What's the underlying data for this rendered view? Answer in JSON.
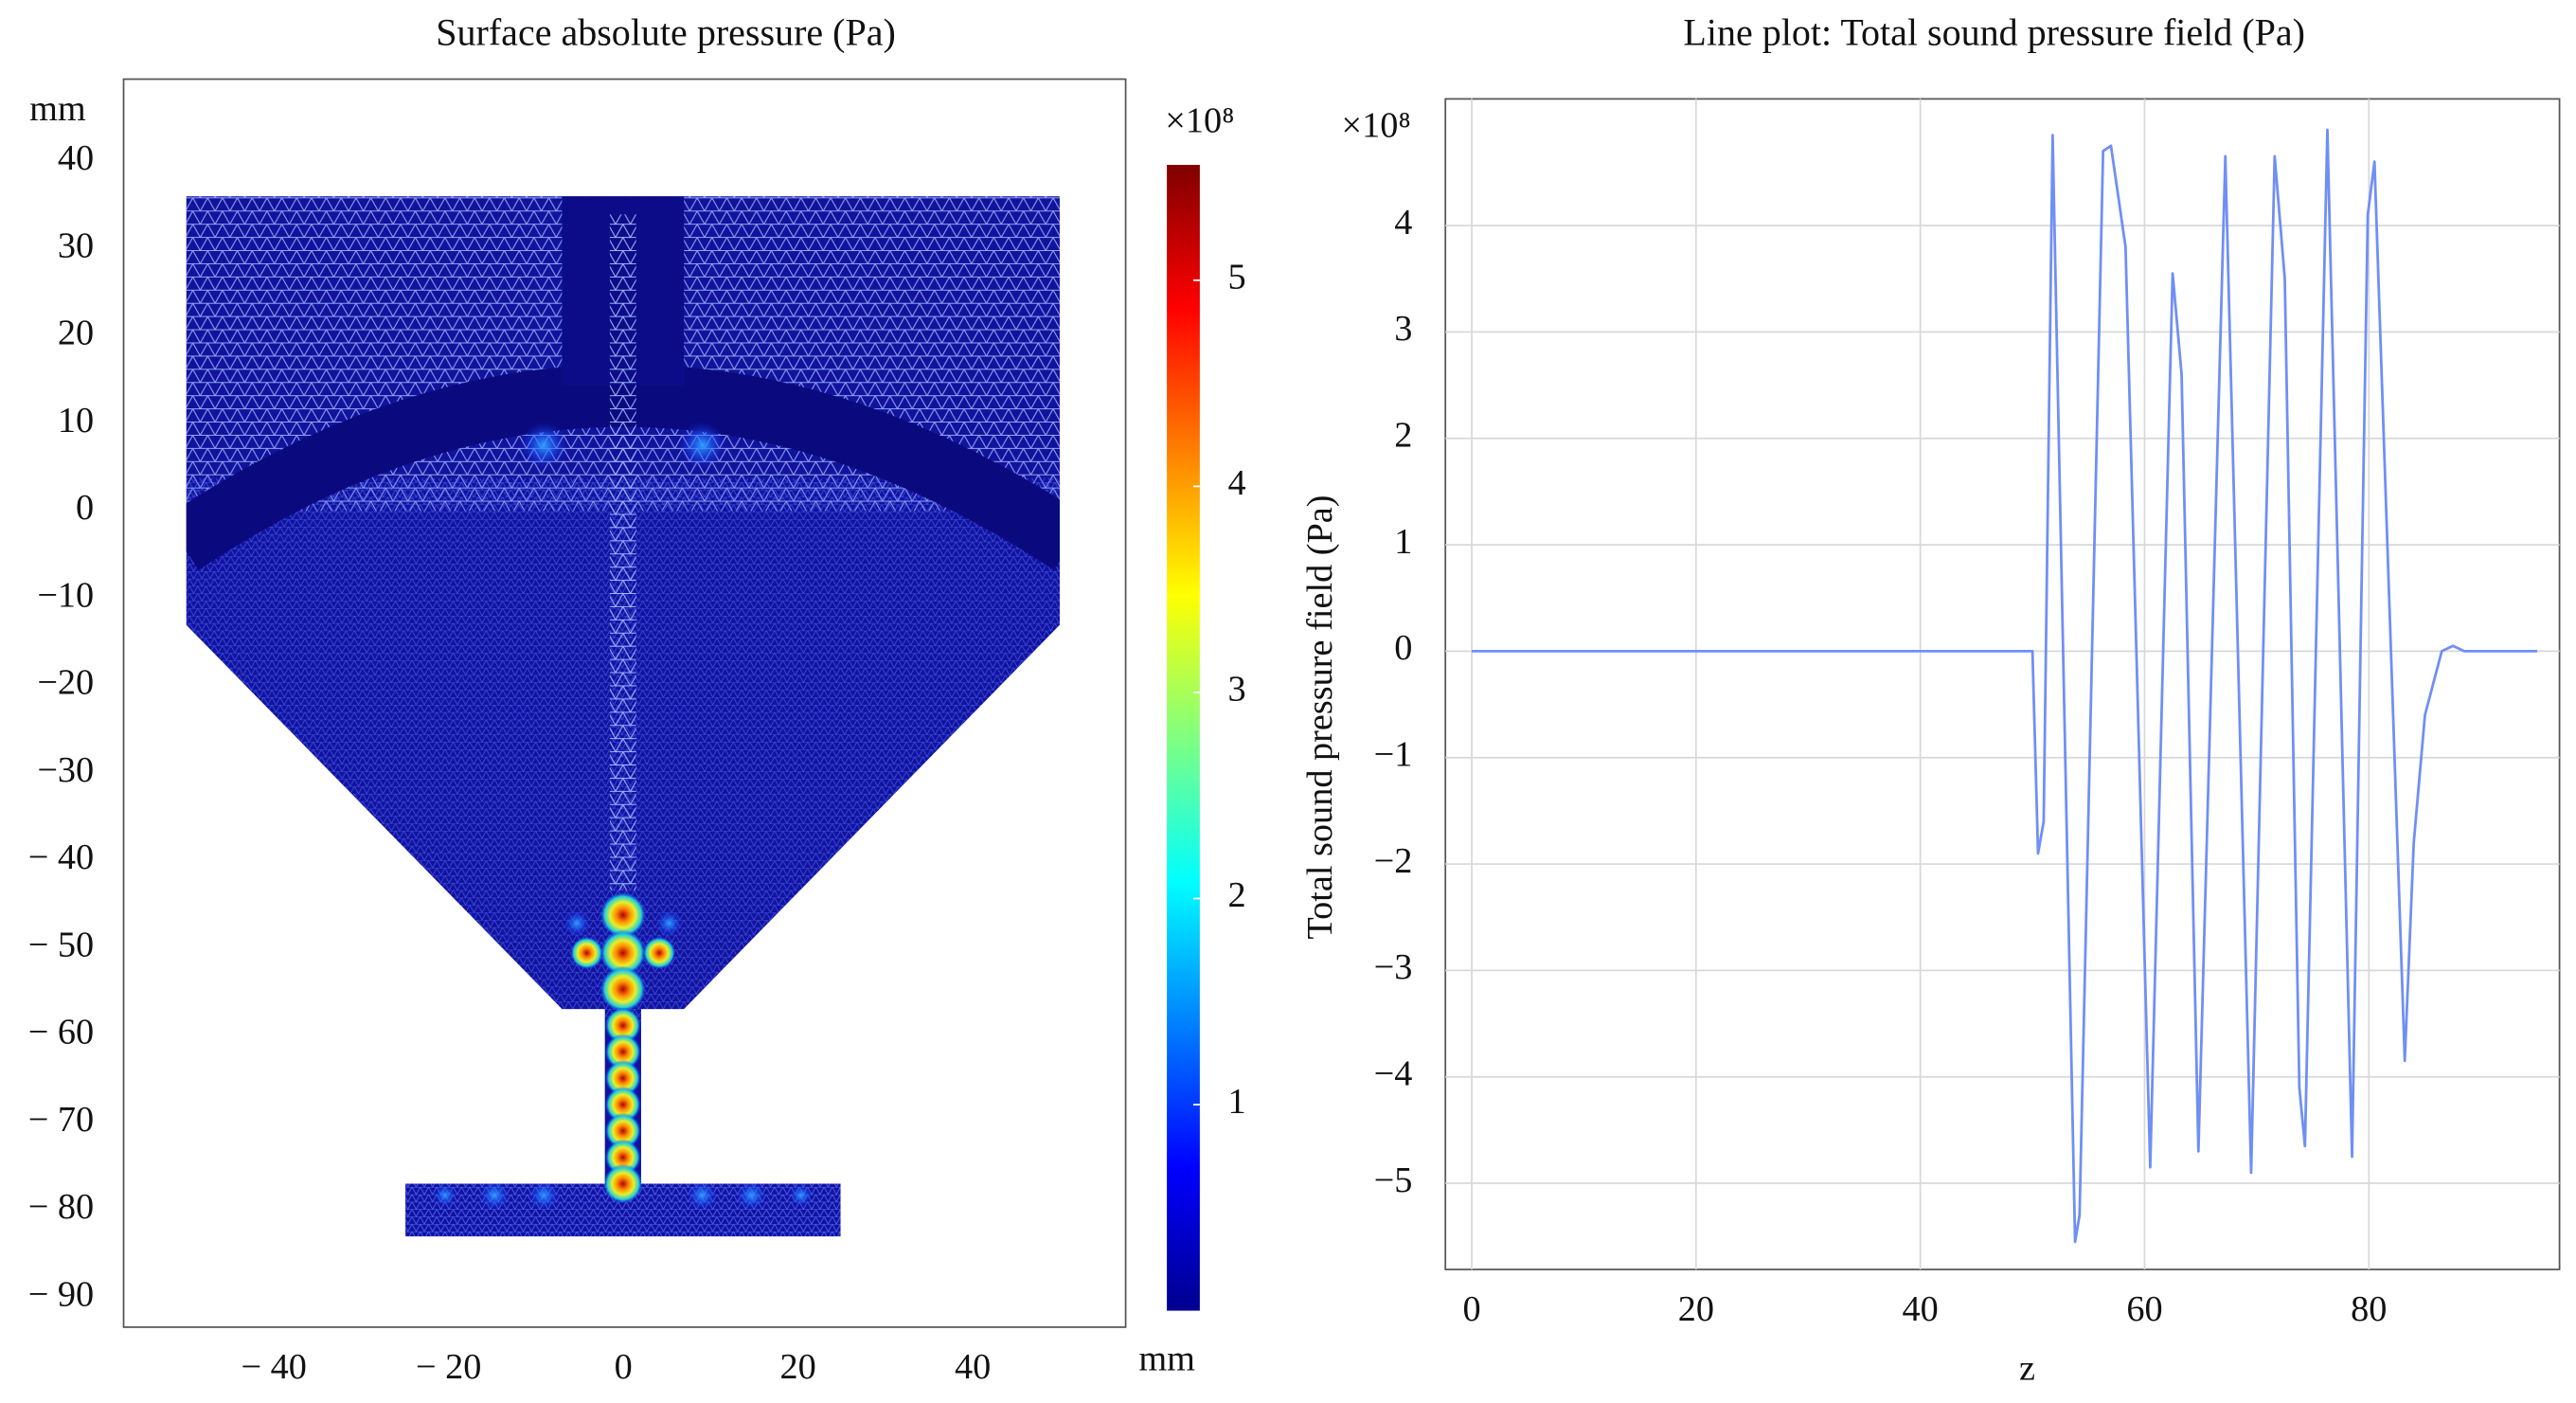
{
  "chart_data": [
    {
      "type": "surface",
      "title": "Surface absolute pressure (Pa)",
      "x_unit": "mm",
      "y_unit": "mm",
      "xlim": [
        -57.2,
        57.5
      ],
      "ylim": [
        -93.4,
        49.4
      ],
      "xticks": [
        {
          "value": -40,
          "label": "− 40"
        },
        {
          "value": -20,
          "label": "− 20"
        },
        0,
        20,
        40
      ],
      "yticks": [
        40,
        30,
        20,
        10,
        0,
        {
          "value": -10,
          "label": "−10"
        },
        {
          "value": -20,
          "label": "−20"
        },
        {
          "value": -30,
          "label": "−30"
        },
        {
          "value": -40,
          "label": "− 40"
        },
        {
          "value": -50,
          "label": "− 50"
        },
        {
          "value": -60,
          "label": "− 60"
        },
        {
          "value": -70,
          "label": "− 70"
        },
        {
          "value": -80,
          "label": "− 80"
        },
        {
          "value": -90,
          "label": "− 90"
        }
      ],
      "grid": false,
      "colorbar": {
        "label": "×10⁸",
        "lim": [
          0,
          5.56
        ],
        "ticks": [
          1,
          2,
          3,
          4,
          5
        ],
        "colormap": "jet"
      }
    },
    {
      "type": "line",
      "title": "Line plot: Total sound pressure field (Pa)",
      "xlabel": "z",
      "ylabel": "Total sound pressure field (Pa)",
      "y_exponent": "×10⁸",
      "x": [
        0,
        10,
        20,
        30,
        40,
        50,
        50.5,
        51,
        51.8,
        53.8,
        54.2,
        56.3,
        57,
        58.3,
        60.5,
        62.5,
        63.3,
        64.8,
        67.2,
        69.5,
        71.6,
        72.5,
        73.8,
        74.3,
        76.3,
        78.5,
        79.9,
        80.5,
        83.2,
        84,
        85,
        86.5,
        87.5,
        88.5,
        95
      ],
      "series": [
        {
          "color": "#6f8ff5",
          "values": [
            0,
            0,
            0,
            0,
            0,
            0,
            -1.9,
            -1.6,
            4.85,
            -5.55,
            -5.3,
            4.7,
            4.75,
            3.8,
            -4.85,
            3.55,
            2.6,
            -4.7,
            4.65,
            -4.9,
            4.65,
            3.5,
            -4.1,
            -4.65,
            4.9,
            -4.75,
            4.1,
            4.6,
            -3.85,
            -1.8,
            -0.6,
            0,
            0.05,
            0,
            0
          ]
        }
      ],
      "xlim": [
        -2.35,
        97
      ],
      "ylim": [
        -5.81,
        5.19
      ],
      "xticks": [
        0,
        20,
        40,
        60,
        80
      ],
      "yticks": [
        4,
        3,
        2,
        1,
        0,
        {
          "value": -1,
          "label": "−1"
        },
        {
          "value": -2,
          "label": "−2"
        },
        {
          "value": -3,
          "label": "−3"
        },
        {
          "value": -4,
          "label": "−4"
        },
        {
          "value": -5,
          "label": "−5"
        }
      ],
      "grid": true
    }
  ]
}
